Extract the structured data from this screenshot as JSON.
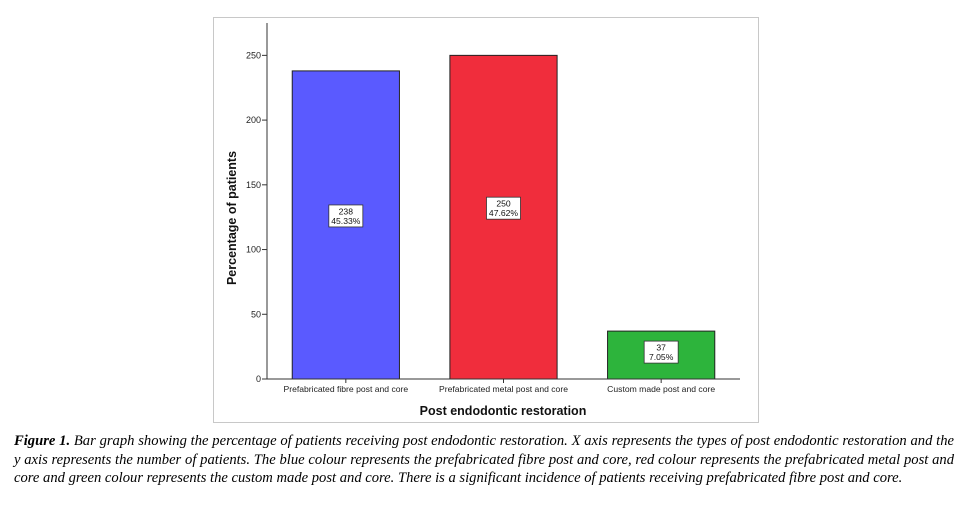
{
  "chart_data": {
    "type": "bar",
    "categories": [
      "Prefabricated fibre post and core",
      "Prefabricated metal post and core",
      "Custom made post and core"
    ],
    "values": [
      238,
      250,
      37
    ],
    "percent_labels": [
      "45.33%",
      "47.62%",
      "7.05%"
    ],
    "count_labels": [
      "238",
      "250",
      "37"
    ],
    "colors": [
      "#5a5aff",
      "#f02d3c",
      "#2db43c"
    ],
    "title": "",
    "xlabel": "Post endodontic restoration",
    "ylabel": "Percentage of patients",
    "ylim": [
      0,
      275
    ],
    "yticks": [
      0,
      50,
      100,
      150,
      200,
      250
    ],
    "ytick_labels": [
      "0",
      "50",
      "100",
      "150",
      "200",
      "250"
    ],
    "grid": false,
    "legend": "none"
  },
  "caption": {
    "lead": "Figure 1.",
    "text": "Bar graph showing the percentage of patients receiving post endodontic restoration. X axis represents the types of post endodontic restoration and the y axis represents the number of patients. The blue colour represents the prefabricated fibre post and core, red colour represents the prefabricated metal post and core and green colour represents the custom made post and core. There is a significant incidence of patients receiving prefabricated fibre post and core."
  }
}
